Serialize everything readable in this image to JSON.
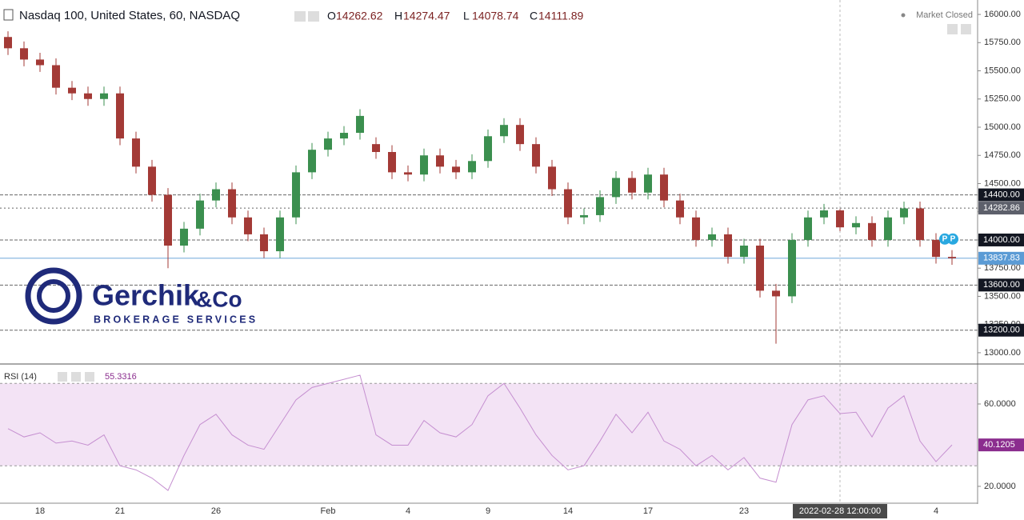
{
  "chart_data": {
    "type": "candlestick",
    "title": "Nasdaq 100, United States, 60, NASDAQ",
    "ohlc_labels": [
      "O",
      "H",
      "L",
      "C"
    ],
    "status": "Market Closed",
    "up_color": "#3b8f4f",
    "down_color": "#a33a36",
    "categories": [
      null,
      null,
      "18",
      null,
      null,
      null,
      null,
      "21",
      null,
      null,
      null,
      null,
      null,
      "26",
      null,
      null,
      null,
      null,
      null,
      null,
      "Feb",
      null,
      null,
      null,
      null,
      "4",
      null,
      null,
      null,
      null,
      "9",
      null,
      null,
      null,
      null,
      "14",
      null,
      null,
      null,
      null,
      "17",
      null,
      null,
      null,
      null,
      null,
      "23",
      null,
      null,
      null,
      null,
      null,
      "2022-02-28 12:00:00",
      null,
      null,
      null,
      null,
      null,
      "4",
      null
    ],
    "open": [
      15800,
      15700,
      15600,
      15550,
      15350,
      15300,
      15250,
      15300,
      14900,
      14650,
      14400,
      13950,
      14100,
      14350,
      14450,
      14200,
      14050,
      13900,
      14200,
      14600,
      14800,
      14900,
      14950,
      14850,
      14780,
      14600,
      14580,
      14750,
      14650,
      14600,
      14700,
      14920,
      15020,
      14850,
      14650,
      14450,
      14200,
      14220,
      14380,
      14550,
      14420,
      14580,
      14350,
      14200,
      14000,
      14050,
      13850,
      13950,
      13550,
      13500,
      14000,
      14200,
      14262.62,
      14111.89,
      14150,
      14000,
      14200,
      14280,
      14000,
      13850
    ],
    "high": [
      15850,
      15760,
      15660,
      15610,
      15410,
      15360,
      15360,
      15360,
      14960,
      14710,
      14460,
      14160,
      14410,
      14510,
      14510,
      14260,
      14110,
      14260,
      14660,
      14860,
      14960,
      15010,
      15160,
      14910,
      14840,
      14660,
      14810,
      14810,
      14710,
      14760,
      14980,
      15080,
      15080,
      14910,
      14710,
      14510,
      14280,
      14440,
      14610,
      14610,
      14640,
      14640,
      14410,
      14260,
      14110,
      14110,
      14010,
      14010,
      13610,
      14060,
      14260,
      14320,
      14274.47,
      14210,
      14210,
      14260,
      14340,
      14340,
      14060,
      13910
    ],
    "low": [
      15640,
      15540,
      15490,
      15290,
      15240,
      15190,
      15190,
      14840,
      14590,
      14340,
      13750,
      13890,
      14040,
      14290,
      14140,
      13990,
      13840,
      13840,
      14140,
      14540,
      14740,
      14840,
      14890,
      14720,
      14540,
      14520,
      14520,
      14590,
      14540,
      14540,
      14640,
      14860,
      14790,
      14590,
      14390,
      14140,
      14140,
      14160,
      14320,
      14360,
      14360,
      14290,
      14140,
      13940,
      13940,
      13790,
      13790,
      13490,
      13080,
      13440,
      13940,
      14140,
      14078.74,
      14050,
      13940,
      13940,
      14140,
      13940,
      13790,
      13780
    ],
    "close": [
      15700,
      15600,
      15550,
      15350,
      15300,
      15250,
      15300,
      14900,
      14650,
      14400,
      13950,
      14100,
      14350,
      14450,
      14200,
      14050,
      13900,
      14200,
      14600,
      14800,
      14900,
      14950,
      15100,
      14780,
      14600,
      14580,
      14750,
      14650,
      14600,
      14700,
      14920,
      15020,
      14850,
      14650,
      14450,
      14200,
      14220,
      14380,
      14550,
      14420,
      14580,
      14350,
      14200,
      14000,
      14050,
      13850,
      13950,
      13550,
      13500,
      14000,
      14200,
      14262,
      14111.89,
      14150,
      14000,
      14200,
      14280,
      14000,
      13850,
      13837.83
    ],
    "ylim": [
      12900,
      16128
    ],
    "yticks": [
      {
        "value": 13000,
        "label": "13000.00"
      },
      {
        "value": 13250,
        "label": "13250.00"
      },
      {
        "value": 13500,
        "label": "13500.00"
      },
      {
        "value": 13750,
        "label": "13750.00"
      },
      {
        "value": 14000,
        "label": "14000.00"
      },
      {
        "value": 14250,
        "label": "14250.00"
      },
      {
        "value": 14500,
        "label": "14500.00"
      },
      {
        "value": 14750,
        "label": "14750.00"
      },
      {
        "value": 15000,
        "label": "15000.00"
      },
      {
        "value": 15250,
        "label": "15250.00"
      },
      {
        "value": 15500,
        "label": "15500.00"
      },
      {
        "value": 15750,
        "label": "15750.00"
      },
      {
        "value": 16000,
        "label": "16000.00"
      }
    ],
    "levels": [
      {
        "value": 14400,
        "label": "14400.00",
        "color": "#131722"
      },
      {
        "value": 14282.86,
        "label": "14282.86",
        "color": "#5d606b"
      },
      {
        "value": 14000,
        "label": "14000.00",
        "color": "#131722"
      },
      {
        "value": 13600,
        "label": "13600.00",
        "color": "#131722"
      },
      {
        "value": 13200,
        "label": "13200.00",
        "color": "#131722"
      }
    ],
    "last_price": 13837.83,
    "last_color": "#5b9bd5",
    "markers": [
      "P",
      "P"
    ],
    "crosshair_index": 52,
    "rsi": {
      "title": "RSI (14)",
      "color": "#c58fd0",
      "values": [
        48,
        44,
        46,
        41,
        42,
        40,
        45,
        30,
        28,
        24,
        18,
        35,
        50,
        55,
        45,
        40,
        38,
        50,
        62,
        68,
        70,
        72,
        74,
        45,
        40,
        40,
        52,
        46,
        44,
        50,
        64,
        70,
        58,
        45,
        35,
        28,
        30,
        42,
        55,
        46,
        56,
        42,
        38,
        30,
        35,
        28,
        34,
        24,
        22,
        50,
        62,
        64,
        55.3316,
        56,
        44,
        58,
        64,
        42,
        32,
        40.1205
      ],
      "ylim": [
        12.2,
        76.7
      ],
      "yticks": [
        {
          "value": 20,
          "label": "20.0000"
        },
        {
          "value": 60,
          "label": "60.0000"
        }
      ],
      "band": [
        30,
        70
      ]
    },
    "watermark": {
      "name": "Gerchik",
      "suffix": "&Co",
      "tagline": "BROKERAGE SERVICES"
    }
  }
}
